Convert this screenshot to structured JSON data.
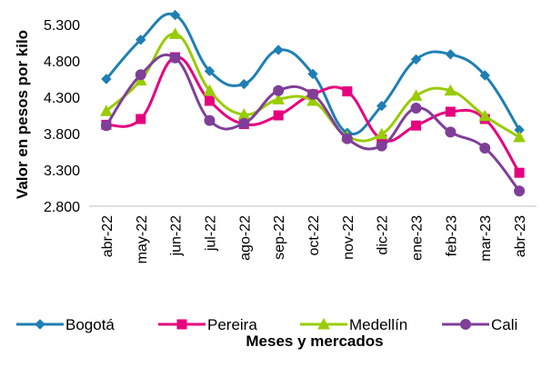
{
  "chart_data": {
    "type": "line",
    "title": "",
    "xlabel": "Meses  y mercados",
    "ylabel": "Valor en pesos por kilo",
    "ylim": [
      2800,
      5300
    ],
    "yticks": [
      "2.800",
      "3.300",
      "3.800",
      "4.300",
      "4.800",
      "5.300"
    ],
    "ytick_values": [
      2800,
      3300,
      3800,
      4300,
      4800,
      5300
    ],
    "categories": [
      "abr-22",
      "may-22",
      "jun-22",
      "jul-22",
      "ago-22",
      "sep-22",
      "oct-22",
      "nov-22",
      "dic-22",
      "ene-23",
      "feb-23",
      "mar-23",
      "abr-23"
    ],
    "grid": false,
    "legend_position": "bottom",
    "series": [
      {
        "name": "Bogotá",
        "color": "#1f7fb4",
        "marker": "diamond",
        "values": [
          4550,
          5090,
          5430,
          4660,
          4480,
          4950,
          4620,
          3810,
          4180,
          4820,
          4890,
          4600,
          3850
        ]
      },
      {
        "name": "Pereira",
        "color": "#e6007e",
        "marker": "square",
        "values": [
          3920,
          4000,
          4850,
          4250,
          3930,
          4050,
          4340,
          4380,
          3720,
          3910,
          4100,
          4000,
          3260
        ]
      },
      {
        "name": "Medellín",
        "color": "#99cc00",
        "marker": "triangle",
        "values": [
          4110,
          4530,
          5170,
          4390,
          4060,
          4270,
          4250,
          3760,
          3790,
          4320,
          4390,
          4040,
          3750
        ]
      },
      {
        "name": "Cali",
        "color": "#7f3f98",
        "marker": "circle",
        "values": [
          3910,
          4610,
          4840,
          3980,
          3940,
          4390,
          4340,
          3730,
          3630,
          4150,
          3820,
          3600,
          3010
        ]
      }
    ]
  }
}
